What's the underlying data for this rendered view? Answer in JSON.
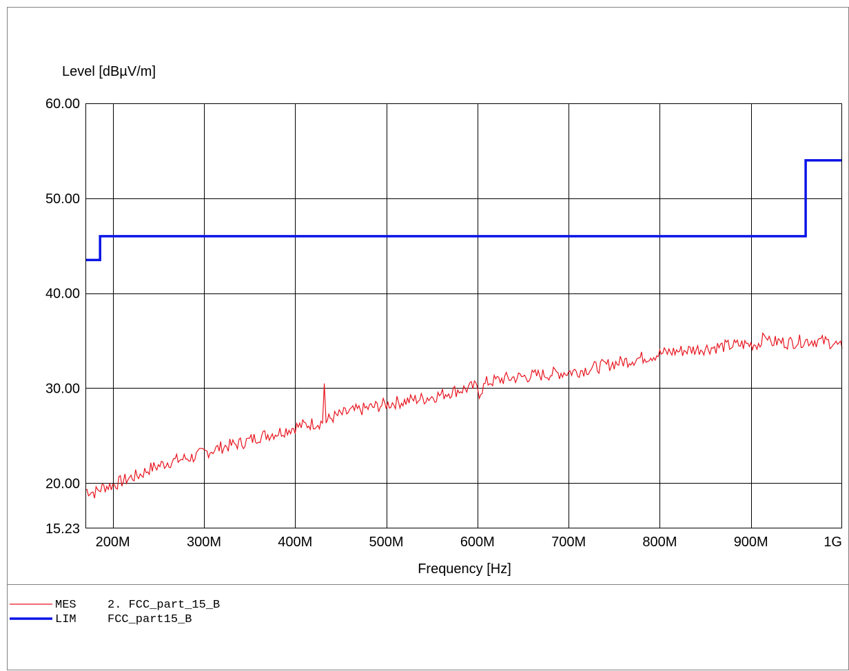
{
  "chart_data": {
    "type": "line",
    "ylabel": "Level [dBµV/m]",
    "xlabel": "Frequency [Hz]",
    "ylim": [
      15.23,
      60
    ],
    "xlim_mhz": [
      170,
      1000
    ],
    "y_ticks": [
      {
        "value": 60,
        "label": "60.00"
      },
      {
        "value": 50,
        "label": "50.00"
      },
      {
        "value": 40,
        "label": "40.00"
      },
      {
        "value": 30,
        "label": "30.00"
      },
      {
        "value": 20,
        "label": "20.00"
      },
      {
        "value": 15.23,
        "label": "15.23"
      }
    ],
    "x_ticks": [
      {
        "value": 200,
        "label": "200M"
      },
      {
        "value": 300,
        "label": "300M"
      },
      {
        "value": 400,
        "label": "400M"
      },
      {
        "value": 500,
        "label": "500M"
      },
      {
        "value": 600,
        "label": "600M"
      },
      {
        "value": 700,
        "label": "700M"
      },
      {
        "value": 800,
        "label": "800M"
      },
      {
        "value": 900,
        "label": "900M"
      },
      {
        "value": 1000,
        "label": "1G"
      }
    ],
    "grid": true,
    "series": [
      {
        "name": "MES 2. FCC_part_15_B",
        "legend_tag": "MES",
        "legend_label": "2. FCC_part_15_B",
        "color": "#e8141e",
        "x": [
          170,
          180,
          190,
          200,
          210,
          220,
          230,
          240,
          250,
          260,
          270,
          280,
          290,
          300,
          310,
          320,
          330,
          340,
          350,
          360,
          370,
          380,
          390,
          400,
          410,
          420,
          430,
          432,
          434,
          440,
          450,
          460,
          470,
          480,
          490,
          500,
          510,
          520,
          530,
          540,
          550,
          560,
          570,
          580,
          590,
          600,
          602,
          610,
          620,
          630,
          640,
          650,
          660,
          670,
          680,
          690,
          700,
          710,
          720,
          730,
          740,
          750,
          760,
          770,
          780,
          790,
          800,
          810,
          820,
          830,
          840,
          850,
          860,
          870,
          880,
          890,
          900,
          910,
          913,
          920,
          930,
          940,
          950,
          960,
          970,
          980,
          990,
          1000
        ],
        "values": [
          19.3,
          19.0,
          19.6,
          19.8,
          20.2,
          20.6,
          20.9,
          21.5,
          21.8,
          22.2,
          22.4,
          22.6,
          22.8,
          23.2,
          23.5,
          23.8,
          24.0,
          24.2,
          24.5,
          24.9,
          25.1,
          25.3,
          25.6,
          25.9,
          26.1,
          26.3,
          26.4,
          30.5,
          26.5,
          26.9,
          27.2,
          27.5,
          27.7,
          27.9,
          28.1,
          28.3,
          28.5,
          28.6,
          28.8,
          28.9,
          29.1,
          29.3,
          29.6,
          29.8,
          30.0,
          30.2,
          29.5,
          30.6,
          30.8,
          31.0,
          31.1,
          31.2,
          31.3,
          31.4,
          31.5,
          31.6,
          31.7,
          31.8,
          32.0,
          32.2,
          32.4,
          32.6,
          32.8,
          33.0,
          33.2,
          33.4,
          33.6,
          33.8,
          33.9,
          34.0,
          34.1,
          34.2,
          34.3,
          34.4,
          34.5,
          34.6,
          34.6,
          34.7,
          35.8,
          34.8,
          34.9,
          34.8,
          34.9,
          35.0,
          35.0,
          34.9,
          34.8,
          34.2
        ]
      },
      {
        "name": "LIM FCC_part15_B",
        "legend_tag": "LIM",
        "legend_label": "FCC_part15_B",
        "color": "#0a14e6",
        "x": [
          170,
          186,
          186,
          960,
          960,
          1000
        ],
        "values": [
          43.5,
          43.5,
          46.0,
          46.0,
          54.0,
          54.0
        ]
      }
    ]
  }
}
